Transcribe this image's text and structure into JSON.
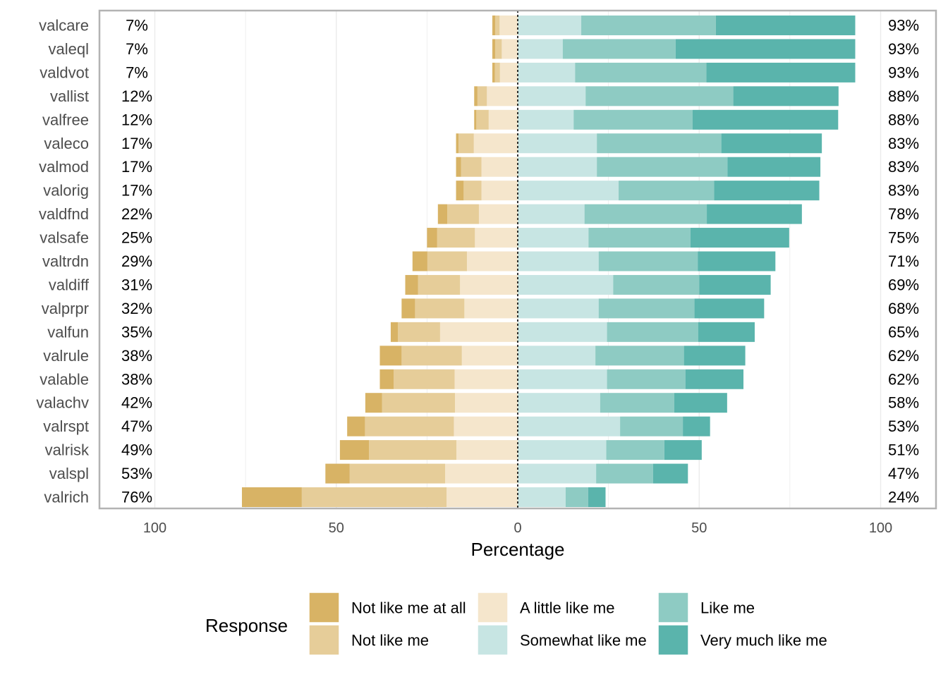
{
  "chart_data": {
    "type": "bar",
    "orientation": "horizontal",
    "layout": "diverging-stacked",
    "xlabel": "Percentage",
    "xlim": [
      -113,
      113
    ],
    "xticks": [
      -100,
      -50,
      0,
      50,
      100
    ],
    "xtick_labels": [
      "100",
      "50",
      "0",
      "50",
      "100"
    ],
    "grid": true,
    "legend_placement": "bottom",
    "legend_title": "Response",
    "categories": [
      "valcare",
      "valeql",
      "valdvot",
      "vallist",
      "valfree",
      "valeco",
      "valmod",
      "valorig",
      "valdfnd",
      "valsafe",
      "valtrdn",
      "valdiff",
      "valprpr",
      "valfun",
      "valrule",
      "valable",
      "valachv",
      "valrspt",
      "valrisk",
      "valspl",
      "valrich"
    ],
    "series": [
      {
        "name": "Not like me at all",
        "side": "negative",
        "color": "#d8b365",
        "values": [
          0.8,
          0.8,
          0.7,
          0.9,
          0.6,
          0.7,
          1.4,
          2.1,
          2.6,
          2.8,
          4.1,
          3.5,
          3.7,
          2.0,
          6.0,
          3.8,
          4.6,
          4.9,
          8.0,
          6.7,
          16.5
        ]
      },
      {
        "name": "Not like me",
        "side": "negative",
        "color": "#e6cd99",
        "values": [
          1.2,
          1.8,
          1.4,
          2.6,
          3.4,
          4.2,
          5.6,
          4.9,
          8.7,
          10.4,
          10.9,
          11.6,
          13.6,
          11.6,
          16.6,
          16.8,
          20.1,
          24.5,
          24.1,
          26.3,
          39.9
        ]
      },
      {
        "name": "A little like me",
        "side": "negative",
        "color": "#f5e6cc",
        "values": [
          5.0,
          4.4,
          4.9,
          8.5,
          8.0,
          12.1,
          10.0,
          10.0,
          10.7,
          11.8,
          14.0,
          15.9,
          14.7,
          21.4,
          15.4,
          17.4,
          17.3,
          17.6,
          16.9,
          20.0,
          19.6
        ]
      },
      {
        "name": "Somewhat like me",
        "side": "positive",
        "color": "#c7e5e3",
        "values": [
          17.5,
          12.4,
          15.8,
          18.7,
          15.4,
          21.8,
          21.8,
          27.8,
          18.4,
          19.5,
          22.3,
          26.3,
          22.3,
          24.6,
          21.4,
          24.6,
          22.7,
          28.2,
          24.4,
          21.6,
          13.2
        ]
      },
      {
        "name": "Like me",
        "side": "positive",
        "color": "#8ecbc3",
        "values": [
          37.1,
          31.1,
          36.2,
          40.7,
          32.8,
          34.3,
          36.0,
          26.3,
          33.7,
          28.1,
          27.3,
          23.7,
          26.4,
          25.1,
          24.4,
          21.6,
          20.4,
          17.3,
          16.0,
          15.7,
          6.2
        ]
      },
      {
        "name": "Very much like me",
        "side": "positive",
        "color": "#5ab4ac",
        "values": [
          38.4,
          49.5,
          41.0,
          29.0,
          40.1,
          27.7,
          25.6,
          29.0,
          26.2,
          27.2,
          21.4,
          19.7,
          19.2,
          15.6,
          16.9,
          16.0,
          14.6,
          7.5,
          10.3,
          9.6,
          4.8
        ]
      }
    ],
    "left_labels": [
      "7%",
      "7%",
      "7%",
      "12%",
      "12%",
      "17%",
      "17%",
      "17%",
      "22%",
      "25%",
      "29%",
      "31%",
      "32%",
      "35%",
      "38%",
      "38%",
      "42%",
      "47%",
      "49%",
      "53%",
      "76%"
    ],
    "right_labels": [
      "93%",
      "93%",
      "93%",
      "88%",
      "88%",
      "83%",
      "83%",
      "83%",
      "78%",
      "75%",
      "71%",
      "69%",
      "68%",
      "65%",
      "62%",
      "62%",
      "58%",
      "53%",
      "51%",
      "47%",
      "24%"
    ],
    "legend": [
      {
        "label": "Not like me at all",
        "color": "#d8b365"
      },
      {
        "label": "Not like me",
        "color": "#e6cd99"
      },
      {
        "label": "A little like me",
        "color": "#f5e6cc"
      },
      {
        "label": "Somewhat like me",
        "color": "#c7e5e3"
      },
      {
        "label": "Like me",
        "color": "#8ecbc3"
      },
      {
        "label": "Very much like me",
        "color": "#5ab4ac"
      }
    ]
  }
}
